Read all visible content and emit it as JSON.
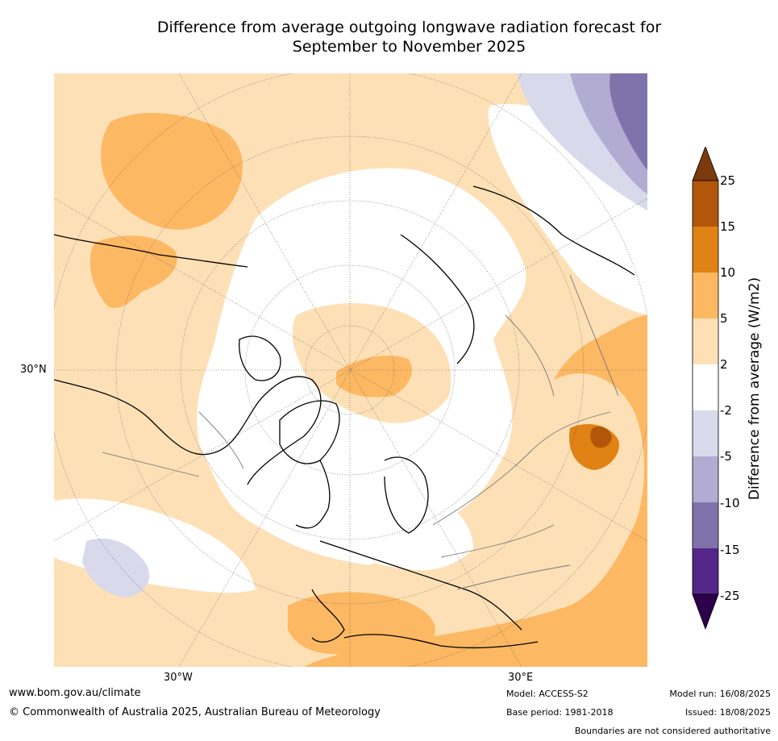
{
  "title_line1": "Difference from average outgoing longwave radiation forecast for",
  "title_line2": "September to November 2025",
  "map_labels": {
    "lat_30n": "30°N",
    "lon_30w": "30°W",
    "lon_30e": "30°E"
  },
  "colorbar": {
    "label": "Difference from average (W/m2)",
    "ticks": [
      "25",
      "15",
      "10",
      "5",
      "2",
      "-2",
      "-5",
      "-10",
      "-15",
      "-25"
    ],
    "colors": {
      "above_25": "#7a3a0c",
      "15_25": "#b1560a",
      "10_15": "#e08214",
      "5_10": "#fdb863",
      "2_5": "#fee0b6",
      "neutral": "#ffffff",
      "m2_m5": "#d8daeb",
      "m5_m10": "#b2abd2",
      "m10_m15": "#8073ac",
      "m15_m25": "#542788",
      "below_m25": "#2d004b"
    }
  },
  "footer": {
    "website": "www.bom.gov.au/climate",
    "copyright": "© Commonwealth of Australia 2025, Australian Bureau of Meteorology",
    "model": "Model: ACCESS-S2",
    "base_period": "Base period: 1981-2018",
    "model_run": "Model run: 16/08/2025",
    "issued": "Issued: 18/08/2025",
    "disclaimer": "Boundaries are not considered authoritative"
  }
}
